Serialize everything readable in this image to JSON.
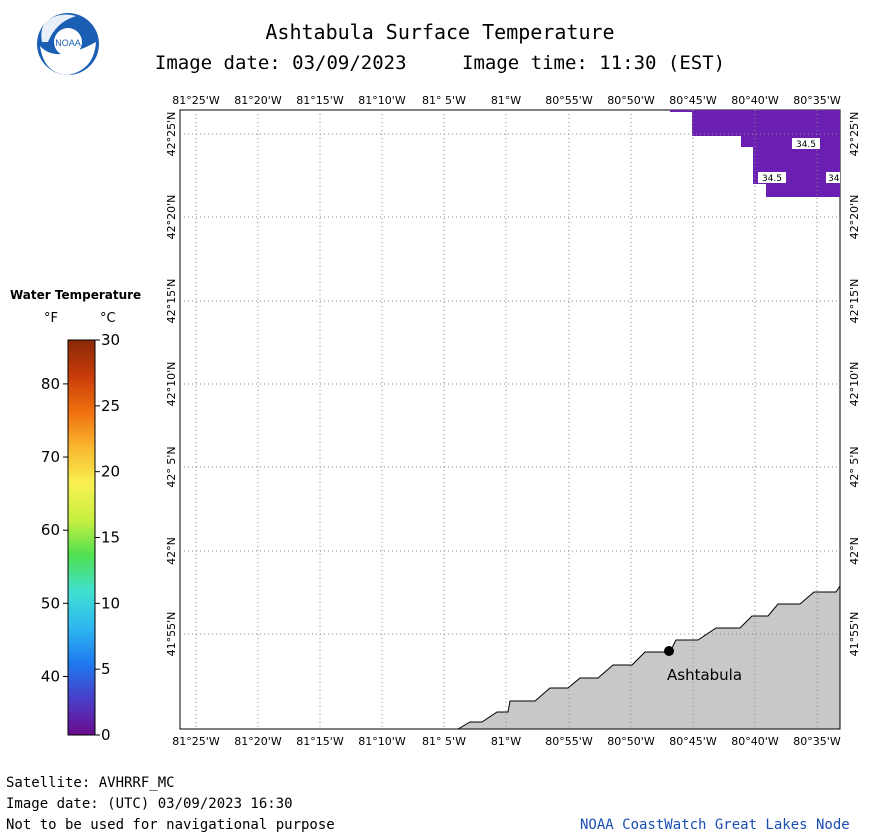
{
  "header": {
    "title": "Ashtabula Surface Temperature",
    "image_date": "Image date: 03/09/2023",
    "image_time": "Image time: 11:30 (EST)",
    "logo_text": "NOAA"
  },
  "map": {
    "lon_labels": [
      "81°25'W",
      "81°20'W",
      "81°15'W",
      "81°10'W",
      "81° 5'W",
      "81°W",
      "80°55'W",
      "80°50'W",
      "80°45'W",
      "80°40'W",
      "80°35'W"
    ],
    "lat_labels": [
      "42°25'N",
      "42°20'N",
      "42°15'N",
      "42°10'N",
      "42° 5'N",
      "42°N",
      "41°55'N"
    ],
    "city_label": "Ashtabula",
    "temp_labels": [
      "34.5",
      "34.5",
      "34"
    ],
    "colors": {
      "water": "#ffffff",
      "land": "#c8c8c8",
      "cold_water": "#6a1fb2",
      "grid": "#999999"
    }
  },
  "legend": {
    "title": "Water Temperature",
    "unit_f": "°F",
    "unit_c": "°C",
    "f_ticks": [
      "80",
      "70",
      "60",
      "50",
      "40"
    ],
    "c_ticks": [
      "30",
      "25",
      "20",
      "15",
      "10",
      "5",
      "0"
    ],
    "colors": [
      "#6a0c8c",
      "#4a3ec8",
      "#1e7af0",
      "#2fb8f0",
      "#40e0d0",
      "#50e050",
      "#c8f040",
      "#f8f050",
      "#f8b830",
      "#f07010",
      "#c83c0a",
      "#8a2806"
    ]
  },
  "footer": {
    "satellite": "Satellite: AVHRRF_MC",
    "utc_date": "Image date: (UTC) 03/09/2023  16:30",
    "disclaimer": "Not to be used for navigational purpose",
    "credit": "NOAA CoastWatch Great Lakes Node"
  }
}
